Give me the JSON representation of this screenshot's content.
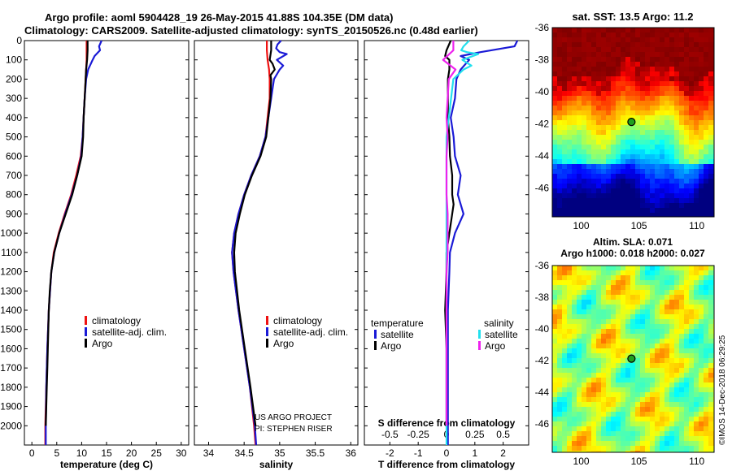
{
  "header": {
    "line1": "Argo profile: aoml 5904428_19 26-May-2015 41.88S 104.35E (DM data)",
    "line2": "Climatology: CARS2009. Satellite-adjusted climatology: synTS_20150526.nc (0.48d earlier)"
  },
  "colors": {
    "climatology": "#ee1111",
    "satellite": "#1a1ad6",
    "argo": "#000000",
    "sat_s": "#22e0ee",
    "argo_s": "#ee22ee"
  },
  "credit": {
    "line1": "US ARGO PROJECT",
    "line2": "PI: STEPHEN RISER"
  },
  "right_side_label": "©IMOS 14-Dec-2018 06:29:25",
  "chart_data": [
    {
      "type": "line",
      "id": "temperature",
      "xlabel": "temperature (deg C)",
      "ylabel": "depth",
      "xlim": [
        -1.5,
        31.5
      ],
      "ylim": [
        2100,
        0
      ],
      "xticks": [
        0,
        5,
        10,
        15,
        20,
        25,
        30
      ],
      "yticks": [
        0,
        100,
        200,
        300,
        400,
        500,
        600,
        700,
        800,
        900,
        1000,
        1100,
        1200,
        1300,
        1400,
        1500,
        1600,
        1700,
        1800,
        1900,
        2000
      ],
      "legend": [
        "climatology",
        "satellite-adj. clim.",
        "Argo"
      ],
      "series": [
        {
          "name": "climatology",
          "color": "climatology",
          "depth": [
            0,
            50,
            100,
            150,
            200,
            300,
            400,
            500,
            600,
            700,
            800,
            900,
            1000,
            1100,
            1200,
            1400,
            1600,
            1800,
            2000,
            2100
          ],
          "values": [
            11.0,
            11.0,
            11.0,
            10.9,
            10.8,
            10.6,
            10.4,
            10.2,
            9.8,
            8.9,
            7.9,
            6.6,
            5.4,
            4.4,
            3.9,
            3.4,
            3.1,
            2.9,
            2.7,
            2.7
          ]
        },
        {
          "name": "satellite-adj. clim.",
          "color": "satellite",
          "depth": [
            0,
            30,
            50,
            80,
            100,
            150,
            200,
            300,
            400,
            500,
            600,
            700,
            800,
            900,
            1000,
            1100,
            1200,
            1400,
            1600,
            1800,
            2000,
            2100
          ],
          "values": [
            14.0,
            13.5,
            13.7,
            12.6,
            12.2,
            11.3,
            10.9,
            10.6,
            10.4,
            10.2,
            9.9,
            9.1,
            8.0,
            6.7,
            5.5,
            4.5,
            3.9,
            3.4,
            3.1,
            2.9,
            2.8,
            2.8
          ]
        },
        {
          "name": "Argo",
          "color": "argo",
          "depth": [
            0,
            50,
            100,
            150,
            200,
            300,
            400,
            500,
            600,
            700,
            800,
            900,
            1000,
            1100,
            1200,
            1300,
            1400,
            1500,
            1600,
            1700,
            1800,
            1900,
            2000
          ],
          "values": [
            11.2,
            11.2,
            11.1,
            10.9,
            10.8,
            10.6,
            10.4,
            10.3,
            10.0,
            9.1,
            8.1,
            6.8,
            5.5,
            4.5,
            3.9,
            3.6,
            3.4,
            3.3,
            3.2,
            3.1,
            3.0,
            2.9,
            2.8
          ]
        }
      ]
    },
    {
      "type": "line",
      "id": "salinity",
      "xlabel": "salinity",
      "ylabel": "depth",
      "xlim": [
        33.8,
        36.1
      ],
      "ylim": [
        2100,
        0
      ],
      "xticks": [
        34,
        34.5,
        35,
        35.5,
        36
      ],
      "legend": [
        "climatology",
        "satellite-adj. clim.",
        "Argo"
      ],
      "series": [
        {
          "name": "climatology",
          "color": "climatology",
          "depth": [
            0,
            50,
            100,
            150,
            200,
            300,
            400,
            500,
            600,
            700,
            800,
            900,
            1000,
            1100,
            1200,
            1400,
            1600,
            1800,
            2000,
            2100
          ],
          "values": [
            34.82,
            34.82,
            34.83,
            34.85,
            34.86,
            34.86,
            34.83,
            34.8,
            34.72,
            34.6,
            34.5,
            34.42,
            34.36,
            34.33,
            34.35,
            34.42,
            34.5,
            34.58,
            34.64,
            34.66
          ]
        },
        {
          "name": "satellite-adj. clim.",
          "color": "satellite",
          "depth": [
            0,
            20,
            40,
            60,
            70,
            100,
            130,
            150,
            200,
            250,
            300,
            400,
            500,
            600,
            700,
            800,
            900,
            1000,
            1100,
            1200,
            1400,
            1600,
            1800,
            2000,
            2100
          ],
          "values": [
            35.02,
            34.97,
            34.95,
            35.0,
            35.1,
            34.96,
            35.05,
            35.0,
            34.92,
            34.9,
            34.88,
            34.84,
            34.8,
            34.72,
            34.6,
            34.5,
            34.42,
            34.36,
            34.33,
            34.35,
            34.42,
            34.5,
            34.58,
            34.65,
            34.67
          ]
        },
        {
          "name": "Argo",
          "color": "argo",
          "depth": [
            0,
            50,
            100,
            120,
            150,
            180,
            200,
            300,
            400,
            500,
            600,
            700,
            800,
            900,
            1000,
            1100,
            1200,
            1400,
            1600,
            1800,
            2000
          ],
          "values": [
            34.88,
            34.88,
            34.86,
            34.9,
            34.93,
            34.87,
            34.88,
            34.87,
            34.84,
            34.81,
            34.73,
            34.61,
            34.51,
            34.44,
            34.38,
            34.36,
            34.37,
            34.43,
            34.51,
            34.59,
            34.66
          ]
        }
      ]
    },
    {
      "type": "line",
      "id": "difference",
      "xlabel": "T difference from climatology",
      "ylabel": "depth",
      "xlabel2": "S difference from climatology",
      "xlim": [
        -2.9,
        2.9
      ],
      "ylim": [
        2100,
        0
      ],
      "xticks": [
        -2,
        -1,
        0,
        1,
        2
      ],
      "xticks2": [
        -0.5,
        -0.25,
        0,
        0.25,
        0.5
      ],
      "xticks2_labels": [
        "-0.5",
        "-0.25",
        "0",
        "0.25",
        "0.5"
      ],
      "legend_left_title": "temperature",
      "legend_right_title": "salinity",
      "legend": [
        "satellite",
        "Argo",
        "satellite",
        "Argo"
      ],
      "series": [
        {
          "name": "satellite",
          "quantity": "temperature",
          "color": "satellite",
          "depth": [
            0,
            30,
            60,
            80,
            100,
            150,
            200,
            300,
            400,
            500,
            600,
            700,
            800,
            900,
            1000,
            1100,
            1200,
            1400,
            1600,
            1800,
            2000,
            2100
          ],
          "values": [
            2.5,
            2.4,
            1.2,
            0.5,
            0.8,
            0.5,
            0.35,
            0.3,
            0.15,
            0.25,
            0.3,
            0.5,
            0.4,
            0.6,
            0.3,
            0.12,
            0.1,
            0.05,
            0.05,
            0.05,
            0.05,
            0.05
          ]
        },
        {
          "name": "Argo",
          "quantity": "temperature",
          "color": "argo",
          "depth": [
            0,
            50,
            80,
            100,
            150,
            200,
            300,
            400,
            500,
            600,
            700,
            800,
            850,
            900,
            1000,
            1100,
            1200,
            1400,
            1600,
            1800,
            2000
          ],
          "values": [
            0.15,
            0.0,
            -0.05,
            0.1,
            0.1,
            0.05,
            0.05,
            0.05,
            0.1,
            0.12,
            0.2,
            0.2,
            0.25,
            0.2,
            0.1,
            0.0,
            0.0,
            -0.05,
            0.0,
            0.0,
            0.0
          ]
        },
        {
          "name": "satellite",
          "quantity": "salinity",
          "color": "sat_s",
          "depth": [
            0,
            30,
            50,
            60,
            70,
            100,
            130,
            150,
            200,
            300,
            400,
            500,
            600,
            700,
            800,
            900,
            1000,
            1100,
            1200,
            1400,
            1600,
            1800,
            2000,
            2100
          ],
          "values": [
            0.2,
            0.15,
            0.13,
            0.18,
            0.28,
            0.14,
            0.22,
            0.15,
            0.06,
            0.04,
            0.02,
            0.0,
            0.0,
            0.0,
            0.0,
            0.0,
            0.0,
            0.0,
            0.0,
            0.0,
            0.0,
            0.0,
            0.0,
            0.0
          ]
        },
        {
          "name": "Argo",
          "quantity": "salinity",
          "color": "argo_s",
          "depth": [
            0,
            50,
            100,
            150,
            200,
            300,
            400,
            500,
            600,
            700,
            800,
            900,
            1000,
            1100,
            1200,
            1400,
            1600,
            1800,
            2000
          ],
          "values": [
            0.06,
            0.06,
            -0.03,
            0.08,
            0.02,
            0.01,
            0.0,
            0.01,
            0.0,
            0.0,
            0.0,
            0.01,
            0.01,
            0.01,
            0.0,
            0.0,
            0.0,
            0.0,
            0.0
          ]
        }
      ]
    },
    {
      "type": "heatmap",
      "id": "sst_map",
      "title": "sat. SST: 13.5 Argo: 11.2",
      "xlim": [
        97.5,
        111.5
      ],
      "ylim": [
        -47.8,
        -36
      ],
      "xticks": [
        100,
        105,
        110
      ],
      "yticks": [
        -36,
        -38,
        -40,
        -42,
        -44,
        -46
      ],
      "marker": {
        "lon": 104.35,
        "lat": -41.88
      }
    },
    {
      "type": "heatmap",
      "id": "sla_map",
      "title": "Altim. SLA: 0.071",
      "subtitle": "Argo h1000: 0.018 h2000: 0.027",
      "xlim": [
        97.5,
        111.5
      ],
      "ylim": [
        -47.8,
        -36
      ],
      "xticks": [
        100,
        105,
        110
      ],
      "yticks": [
        -36,
        -38,
        -40,
        -42,
        -44,
        -46
      ],
      "marker": {
        "lon": 104.35,
        "lat": -41.88
      }
    }
  ]
}
